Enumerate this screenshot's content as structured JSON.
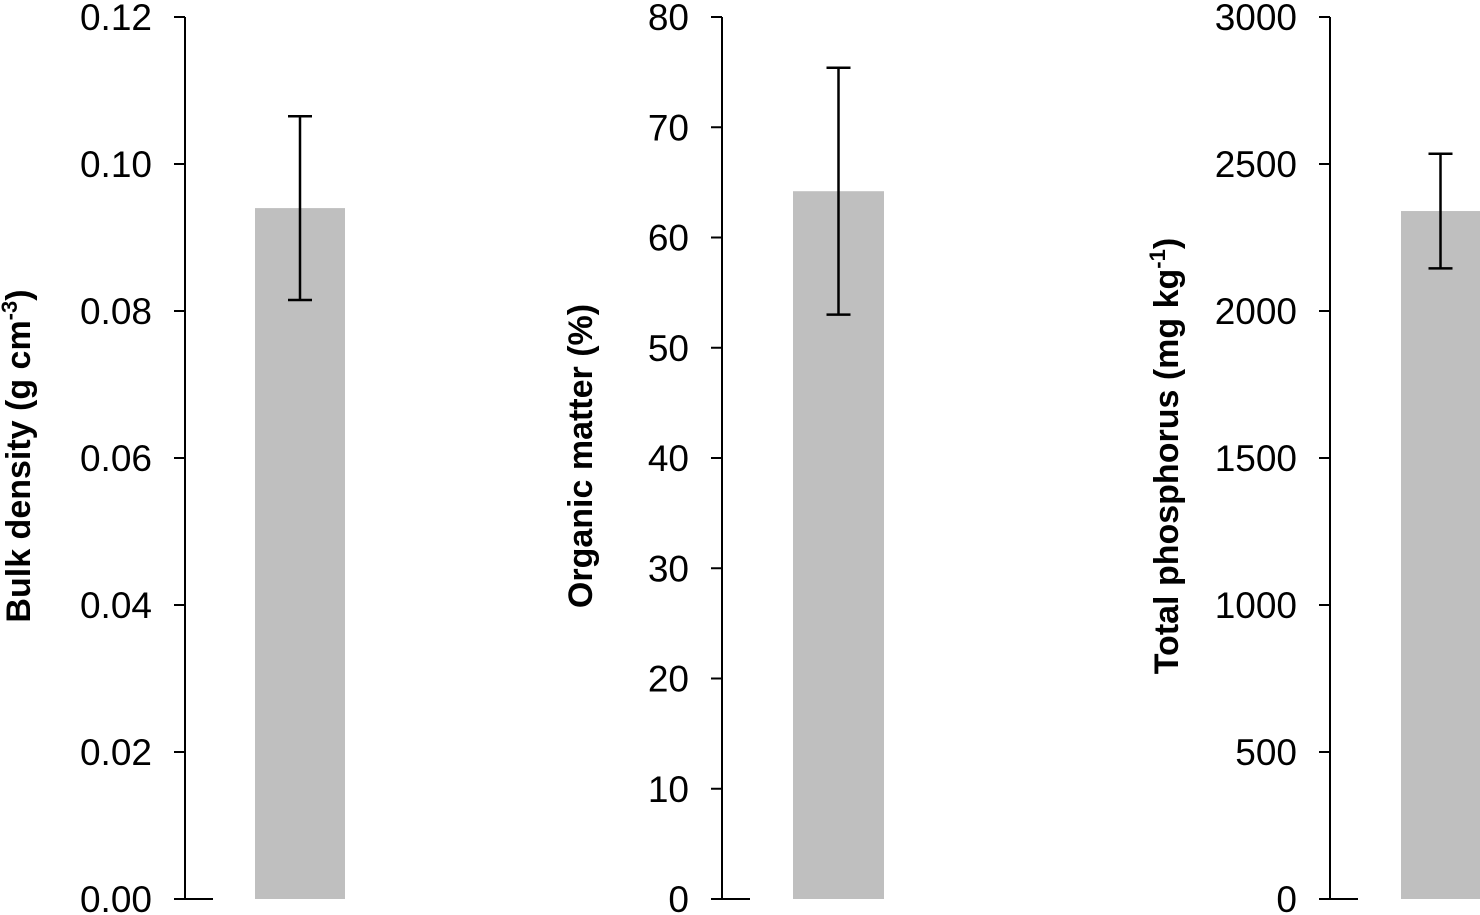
{
  "chart_data": [
    {
      "type": "bar",
      "categories": [
        ""
      ],
      "values": [
        0.094
      ],
      "error": [
        0.0125
      ],
      "ylim": [
        0,
        0.12
      ],
      "yticks": [
        "0.00",
        "0.02",
        "0.04",
        "0.06",
        "0.08",
        "0.10",
        "0.12"
      ],
      "ylabel": "Bulk density (g cm",
      "ylabel_sup": "-3",
      "ylabel_end": ")",
      "xlabel": "",
      "title": "",
      "bar_color": "#bfbfbf",
      "grid": false
    },
    {
      "type": "bar",
      "categories": [
        ""
      ],
      "values": [
        64.2
      ],
      "error": [
        11.2
      ],
      "ylim": [
        0,
        80
      ],
      "yticks": [
        "0",
        "10",
        "20",
        "30",
        "40",
        "50",
        "60",
        "70",
        "80"
      ],
      "ylabel": "Organic matter (%)",
      "ylabel_sup": "",
      "ylabel_end": "",
      "xlabel": "",
      "title": "",
      "bar_color": "#bfbfbf",
      "grid": false
    },
    {
      "type": "bar",
      "categories": [
        ""
      ],
      "values": [
        2340
      ],
      "error": [
        195
      ],
      "ylim": [
        0,
        3000
      ],
      "yticks": [
        "0",
        "500",
        "1000",
        "1500",
        "2000",
        "2500",
        "3000"
      ],
      "ylabel": "Total phosphorus (mg kg",
      "ylabel_sup": "-1",
      "ylabel_end": ")",
      "xlabel": "",
      "title": "",
      "bar_color": "#bfbfbf",
      "grid": false
    }
  ]
}
